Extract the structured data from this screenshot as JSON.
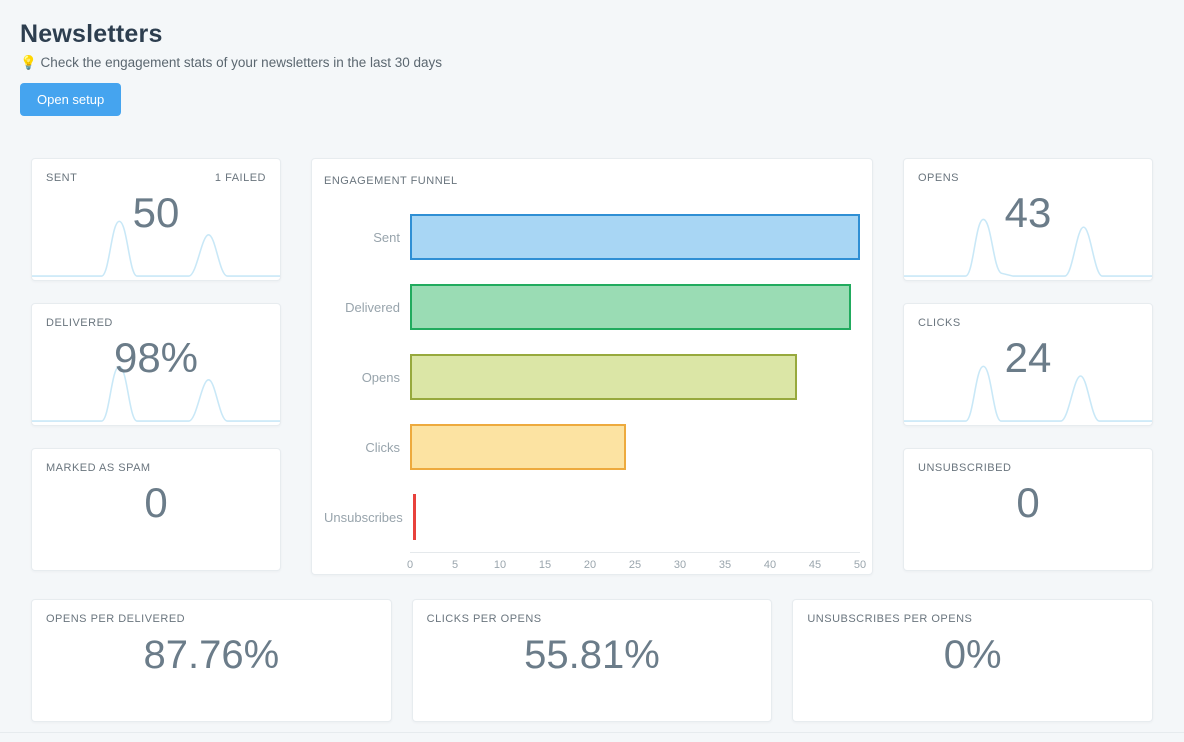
{
  "page": {
    "title": "Newsletters",
    "subtitle": "💡 Check the engagement stats of your newsletters in the last 30 days",
    "setup_button": "Open setup"
  },
  "stats": {
    "sent": {
      "label": "SENT",
      "badge": "1 FAILED",
      "value": "50"
    },
    "delivered": {
      "label": "DELIVERED",
      "value": "98%"
    },
    "spam": {
      "label": "MARKED AS SPAM",
      "value": "0"
    },
    "opens": {
      "label": "OPENS",
      "value": "43"
    },
    "clicks": {
      "label": "CLICKS",
      "value": "24"
    },
    "unsubscribed": {
      "label": "UNSUBSCRIBED",
      "value": "0"
    },
    "opens_per_delivered": {
      "label": "OPENS PER DELIVERED",
      "value": "87.76%"
    },
    "clicks_per_opens": {
      "label": "CLICKS PER OPENS",
      "value": "55.81%"
    },
    "unsubscribes_per_opens": {
      "label": "UNSUBSCRIBES PER OPENS",
      "value": "0%"
    }
  },
  "chart_data": {
    "type": "bar",
    "orientation": "horizontal",
    "title": "ENGAGEMENT FUNNEL",
    "categories": [
      "Sent",
      "Delivered",
      "Opens",
      "Clicks",
      "Unsubscribes"
    ],
    "values": [
      50,
      49,
      43,
      24,
      0
    ],
    "xlim": [
      0,
      50
    ],
    "xticks": [
      0,
      5,
      10,
      15,
      20,
      25,
      30,
      35,
      40,
      45,
      50
    ],
    "grid": false,
    "legend": "none",
    "bar_colors": [
      {
        "fill": "#a8d6f4",
        "border": "#2f8fd4"
      },
      {
        "fill": "#9adcb4",
        "border": "#21ab5e"
      },
      {
        "fill": "#dbe6a6",
        "border": "#97a93d"
      },
      {
        "fill": "#fce3a2",
        "border": "#edaa3e"
      },
      {
        "fill": "#e8413c",
        "border": "#e8413c"
      }
    ]
  },
  "colors": {
    "accent_blue": "#45a4ef",
    "sparkline_blue": "#c9e8f7",
    "page_background": "#f4f7f9"
  }
}
